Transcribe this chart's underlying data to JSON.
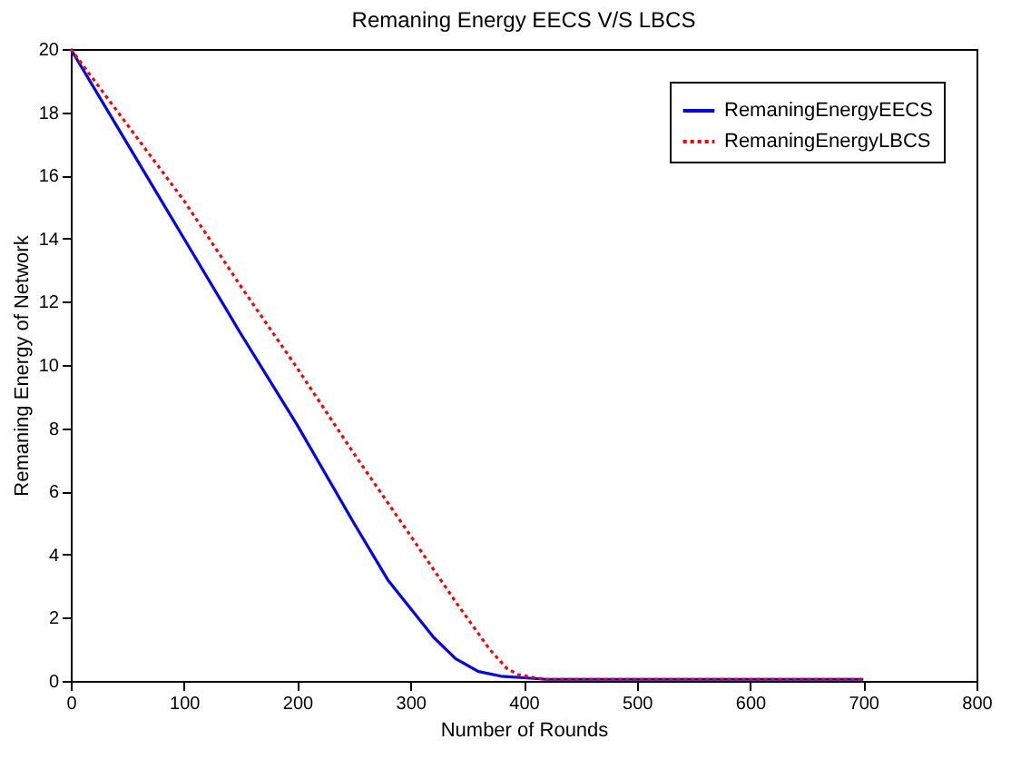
{
  "chart_data": {
    "type": "line",
    "title": "Remaning Energy EECS  V/S LBCS",
    "xlabel": "Number of Rounds",
    "ylabel": "Remaning Energy of Network",
    "xlim": [
      0,
      800
    ],
    "xticks": [
      0,
      100,
      200,
      300,
      400,
      500,
      600,
      700,
      800
    ],
    "ylim": [
      0,
      20
    ],
    "yticks": [
      0,
      2,
      4,
      6,
      8,
      10,
      12,
      14,
      16,
      18,
      20
    ],
    "grid": false,
    "legend": "top right",
    "series": [
      {
        "name": "RemaningEnergyEECS",
        "color": "#0000ff",
        "line_style": "solid",
        "x": [
          0,
          50,
          100,
          150,
          200,
          250,
          280,
          300,
          320,
          340,
          360,
          380,
          400,
          420,
          500,
          600,
          700
        ],
        "values": [
          20,
          17,
          14,
          11,
          8.1,
          5,
          3.2,
          2.3,
          1.4,
          0.7,
          0.3,
          0.15,
          0.1,
          0.05,
          0.05,
          0.05,
          0.05
        ]
      },
      {
        "name": "RemaningEnergyLBCS",
        "color": "#ff0000",
        "line_style": "dotted",
        "x": [
          0,
          50,
          100,
          150,
          200,
          250,
          300,
          340,
          370,
          385,
          395,
          410,
          420,
          500,
          600,
          700
        ],
        "values": [
          20,
          17.6,
          15.2,
          12.5,
          9.9,
          7.2,
          4.6,
          2.5,
          1,
          0.4,
          0.2,
          0.1,
          0.05,
          0.05,
          0.05,
          0.05
        ]
      }
    ]
  }
}
